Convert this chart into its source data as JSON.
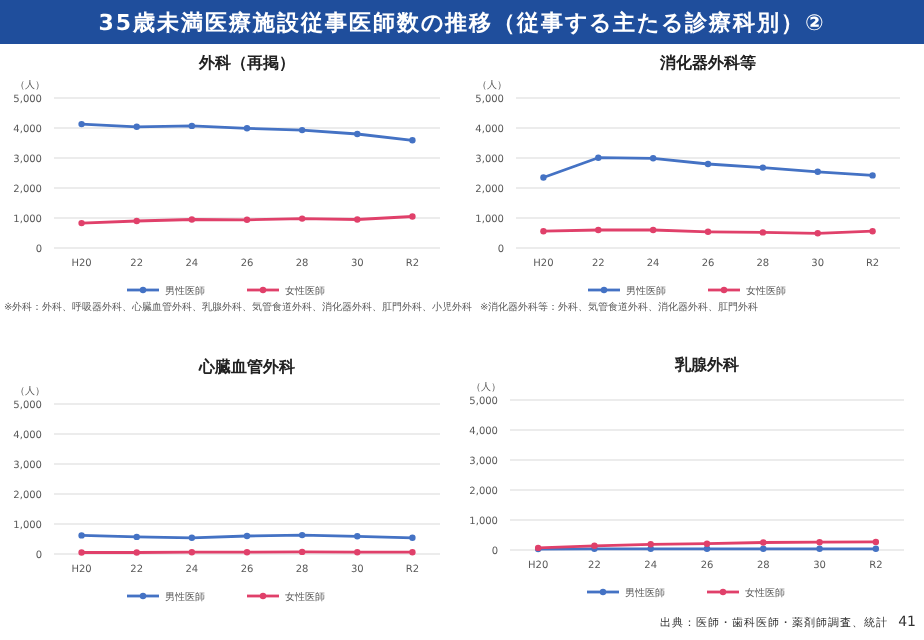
{
  "chart_data": [
    {
      "type": "line",
      "title": "外科（再掲）",
      "ylabel": "（人）",
      "categories": [
        "H20",
        "22",
        "24",
        "26",
        "28",
        "30",
        "R2"
      ],
      "series": [
        {
          "name": "男性医師",
          "color": "#4472c4",
          "values": [
            4130,
            4040,
            4070,
            3990,
            3930,
            3800,
            3590
          ]
        },
        {
          "name": "女性医師",
          "color": "#e0406a",
          "values": [
            830,
            900,
            950,
            940,
            980,
            950,
            1050
          ]
        }
      ],
      "ylim": [
        0,
        5000
      ],
      "yticks": [
        {
          "value": 0,
          "label": "0"
        },
        {
          "value": 1000,
          "label": "1,000"
        },
        {
          "value": 2000,
          "label": "2,000"
        },
        {
          "value": 3000,
          "label": "3,000"
        },
        {
          "value": 4000,
          "label": "4,000"
        },
        {
          "value": 5000,
          "label": "5,000"
        }
      ],
      "grid": "y",
      "legend": "bottom",
      "marker": "circle",
      "line_style": "solid",
      "annotations": [
        "35歳未満医療施設従事医師数の推移（従事する主たる診療科別）②",
        "※外科：外科、呼吸器外科、心臓血管外科、乳腺外科、気管食道外科、消化器外科、肛門外科、小児外科"
      ]
    },
    {
      "type": "line",
      "title": "消化器外科等",
      "ylabel": "（人）",
      "categories": [
        "H20",
        "22",
        "24",
        "26",
        "28",
        "30",
        "R2"
      ],
      "series": [
        {
          "name": "男性医師",
          "color": "#4472c4",
          "values": [
            2350,
            3010,
            2990,
            2800,
            2680,
            2540,
            2420
          ]
        },
        {
          "name": "女性医師",
          "color": "#e0406a",
          "values": [
            560,
            600,
            600,
            540,
            520,
            490,
            560
          ]
        }
      ],
      "ylim": [
        0,
        5000
      ],
      "yticks": [
        {
          "value": 0,
          "label": "0"
        },
        {
          "value": 1000,
          "label": "1,000"
        },
        {
          "value": 2000,
          "label": "2,000"
        },
        {
          "value": 3000,
          "label": "3,000"
        },
        {
          "value": 4000,
          "label": "4,000"
        },
        {
          "value": 5000,
          "label": "5,000"
        }
      ],
      "grid": "y",
      "legend": "bottom",
      "marker": "circle",
      "line_style": "solid",
      "annotations": [
        "※消化器外科等：外科、気管食道外科、消化器外科、肛門外科"
      ]
    },
    {
      "type": "line",
      "title": "心臓血管外科",
      "ylabel": "（人）",
      "categories": [
        "H20",
        "22",
        "24",
        "26",
        "28",
        "30",
        "R2"
      ],
      "series": [
        {
          "name": "男性医師",
          "color": "#4472c4",
          "values": [
            620,
            570,
            540,
            600,
            630,
            590,
            540
          ]
        },
        {
          "name": "女性医師",
          "color": "#e0406a",
          "values": [
            50,
            50,
            60,
            60,
            70,
            60,
            60
          ]
        }
      ],
      "ylim": [
        0,
        5000
      ],
      "yticks": [
        {
          "value": 0,
          "label": "0"
        },
        {
          "value": 1000,
          "label": "1,000"
        },
        {
          "value": 2000,
          "label": "2,000"
        },
        {
          "value": 3000,
          "label": "3,000"
        },
        {
          "value": 4000,
          "label": "4,000"
        },
        {
          "value": 5000,
          "label": "5,000"
        }
      ],
      "grid": "y",
      "legend": "bottom",
      "marker": "circle",
      "line_style": "solid"
    },
    {
      "type": "line",
      "title": "乳腺外科",
      "ylabel": "（人）",
      "categories": [
        "H20",
        "22",
        "24",
        "26",
        "28",
        "30",
        "R2"
      ],
      "series": [
        {
          "name": "男性医師",
          "color": "#4472c4",
          "values": [
            30,
            40,
            40,
            40,
            40,
            40,
            40
          ]
        },
        {
          "name": "女性医師",
          "color": "#e0406a",
          "values": [
            70,
            140,
            190,
            210,
            250,
            260,
            270
          ]
        }
      ],
      "ylim": [
        0,
        5000
      ],
      "yticks": [
        {
          "value": 0,
          "label": "0"
        },
        {
          "value": 1000,
          "label": "1,000"
        },
        {
          "value": 2000,
          "label": "2,000"
        },
        {
          "value": 3000,
          "label": "3,000"
        },
        {
          "value": 4000,
          "label": "4,000"
        },
        {
          "value": 5000,
          "label": "5,000"
        }
      ],
      "grid": "y",
      "legend": "bottom",
      "marker": "circle",
      "line_style": "solid",
      "annotations": [
        "出典：医師・歯科医師・薬剤師調査、統計",
        "41"
      ]
    }
  ]
}
